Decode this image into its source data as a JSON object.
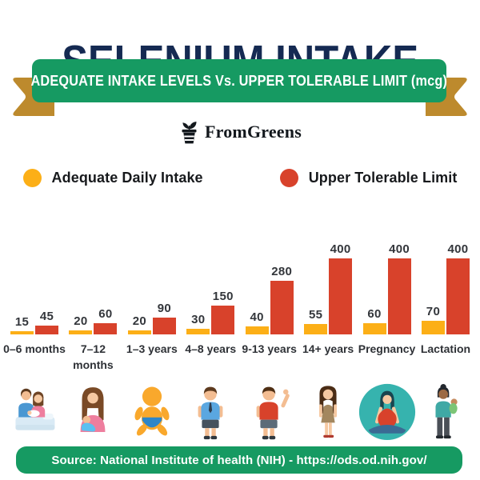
{
  "page": {
    "title": "SELENIUM INTAKE"
  },
  "banner": {
    "text": "ADEQUATE INTAKE LEVELS Vs. UPPER TOLERABLE LIMIT (mcg)"
  },
  "logo": {
    "brand": "FromGreens"
  },
  "legend": {
    "adequate": {
      "label": "Adequate Daily Intake",
      "color": "#FCAF17"
    },
    "upper": {
      "label": "Upper Tolerable Limit",
      "color": "#D8422B"
    }
  },
  "chart_data": {
    "type": "bar",
    "title": "ADEQUATE INTAKE LEVELS Vs. UPPER TOLERABLE LIMIT (mcg)",
    "unit": "mcg",
    "categories": [
      "0–6 months",
      "7–12 months",
      "1–3 years",
      "4–8 years",
      "9-13 years",
      "14+ years",
      "Pregnancy",
      "Lactation"
    ],
    "series": [
      {
        "name": "Adequate Daily Intake",
        "color": "#FCAF17",
        "values": [
          15,
          20,
          20,
          30,
          40,
          55,
          60,
          70
        ]
      },
      {
        "name": "Upper Tolerable Limit",
        "color": "#D8422B",
        "values": [
          45,
          60,
          90,
          150,
          280,
          400,
          400,
          400
        ]
      }
    ],
    "ylim": [
      0,
      400
    ],
    "grid": false,
    "value_labels": true,
    "legend_position": "top"
  },
  "icons": [
    "family-with-newborn-icon",
    "mother-holding-infant-icon",
    "toddler-icon",
    "child-boy-icon",
    "preteen-boy-waving-icon",
    "teen-girl-icon",
    "pregnant-woman-meditating-icon",
    "mother-carrying-baby-icon"
  ],
  "footer": {
    "text": "Source: National Institute of health (NIH) - https://ods.od.nih.gov/"
  },
  "colors": {
    "title_navy": "#152A52",
    "banner_green": "#169A62",
    "ribbon_gold": "#BD8A2D",
    "adequate_yellow": "#FCAF17",
    "upper_red": "#D8422B",
    "text_dark": "#2E3136"
  }
}
